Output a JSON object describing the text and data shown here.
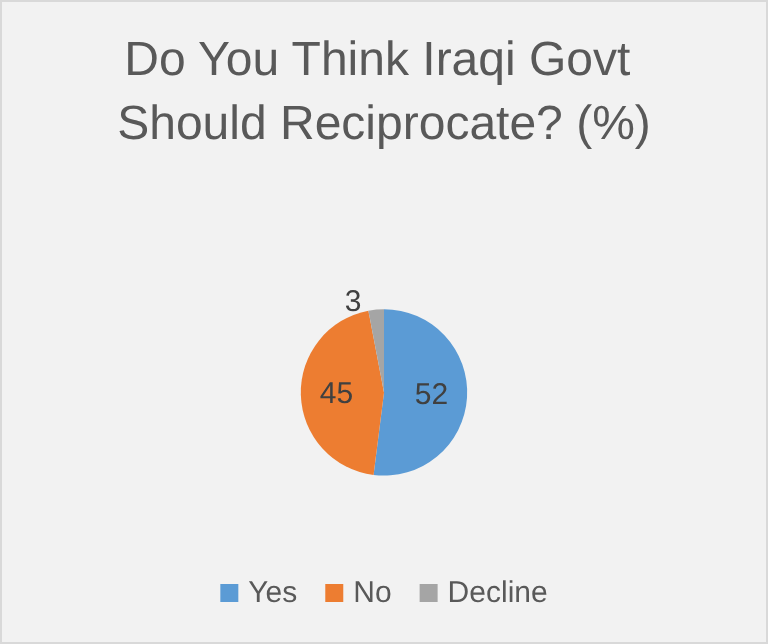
{
  "chart_data": {
    "type": "pie",
    "title": "Do You Think Iraqi Govt Should Reciprocate? (%)",
    "categories": [
      "Yes",
      "No",
      "Decline"
    ],
    "values": [
      52,
      45,
      3
    ],
    "colors": [
      "#5b9bd5",
      "#ed7d31",
      "#a5a5a5"
    ],
    "data_labels": true,
    "legend": "bottom"
  }
}
